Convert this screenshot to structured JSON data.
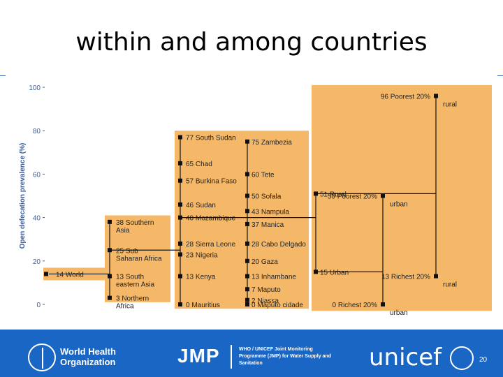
{
  "slide": {
    "title": "within and among countries",
    "page_number": "20"
  },
  "footer": {
    "who_text": "World Health Organization",
    "jmp_text": "JMP",
    "jmp_desc": "WHO / UNICEF Joint Monitoring Programme (JMP) for Water Supply and Sanitation",
    "unicef_text": "unicef"
  },
  "colors": {
    "panel": "#f5b868",
    "accent_blue": "#2f6fb0",
    "footer_blue": "#1a66c4",
    "axis_text": "#3b5b9a",
    "marker": "#111111"
  },
  "chart_data": {
    "type": "scatter",
    "title": "within and among countries",
    "ylabel": "Open defecation prevalence (%)",
    "xlabel": "",
    "ylim": [
      0,
      100
    ],
    "yticks": [
      "0",
      "20",
      "40",
      "60",
      "80",
      "100"
    ],
    "grid": false,
    "columns": [
      {
        "name": "world",
        "points": [
          {
            "label": "14 World",
            "value": 14
          }
        ]
      },
      {
        "name": "regions",
        "points": [
          {
            "label": "38 Southern Asia",
            "value": 38
          },
          {
            "label": "25 Sub Saharan Africa",
            "value": 25
          },
          {
            "label": "13 South eastern Asia",
            "value": 13
          },
          {
            "label": "3 Northern Africa",
            "value": 3
          }
        ]
      },
      {
        "name": "countries",
        "points": [
          {
            "label": "77 South Sudan",
            "value": 77
          },
          {
            "label": "65 Chad",
            "value": 65
          },
          {
            "label": "57 Burkina Faso",
            "value": 57
          },
          {
            "label": "46 Sudan",
            "value": 46
          },
          {
            "label": "40 Mozambique",
            "value": 40
          },
          {
            "label": "28 Sierra Leone",
            "value": 28
          },
          {
            "label": "23 Nigeria",
            "value": 23
          },
          {
            "label": "13 Kenya",
            "value": 13
          },
          {
            "label": "0 Mauritius",
            "value": 0
          }
        ]
      },
      {
        "name": "provinces",
        "points": [
          {
            "label": "75 Zambezia",
            "value": 75
          },
          {
            "label": "60 Tete",
            "value": 60
          },
          {
            "label": "50 Sofala",
            "value": 50
          },
          {
            "label": "43 Nampula",
            "value": 43
          },
          {
            "label": "37 Manica",
            "value": 37
          },
          {
            "label": "28 Cabo Delgado",
            "value": 28
          },
          {
            "label": "20 Gaza",
            "value": 20
          },
          {
            "label": "13 Inhambane",
            "value": 13
          },
          {
            "label": "7 Maputo",
            "value": 7
          },
          {
            "label": "2 Niassa",
            "value": 2
          },
          {
            "label": "0 Maputo cidade",
            "value": 0
          }
        ]
      },
      {
        "name": "residence",
        "points": [
          {
            "label": "51 Rural",
            "value": 51
          },
          {
            "label": "15 Urban",
            "value": 15
          }
        ]
      },
      {
        "name": "urban-wealth",
        "points": [
          {
            "label": "50 Poorest 20% urban",
            "value": 50
          },
          {
            "label": "0 Richest 20% urban",
            "value": 0
          }
        ]
      },
      {
        "name": "rural-wealth",
        "points": [
          {
            "label": "96 Poorest 20% rural",
            "value": 96
          },
          {
            "label": "13 Richest 20% rural",
            "value": 13
          }
        ]
      }
    ]
  }
}
